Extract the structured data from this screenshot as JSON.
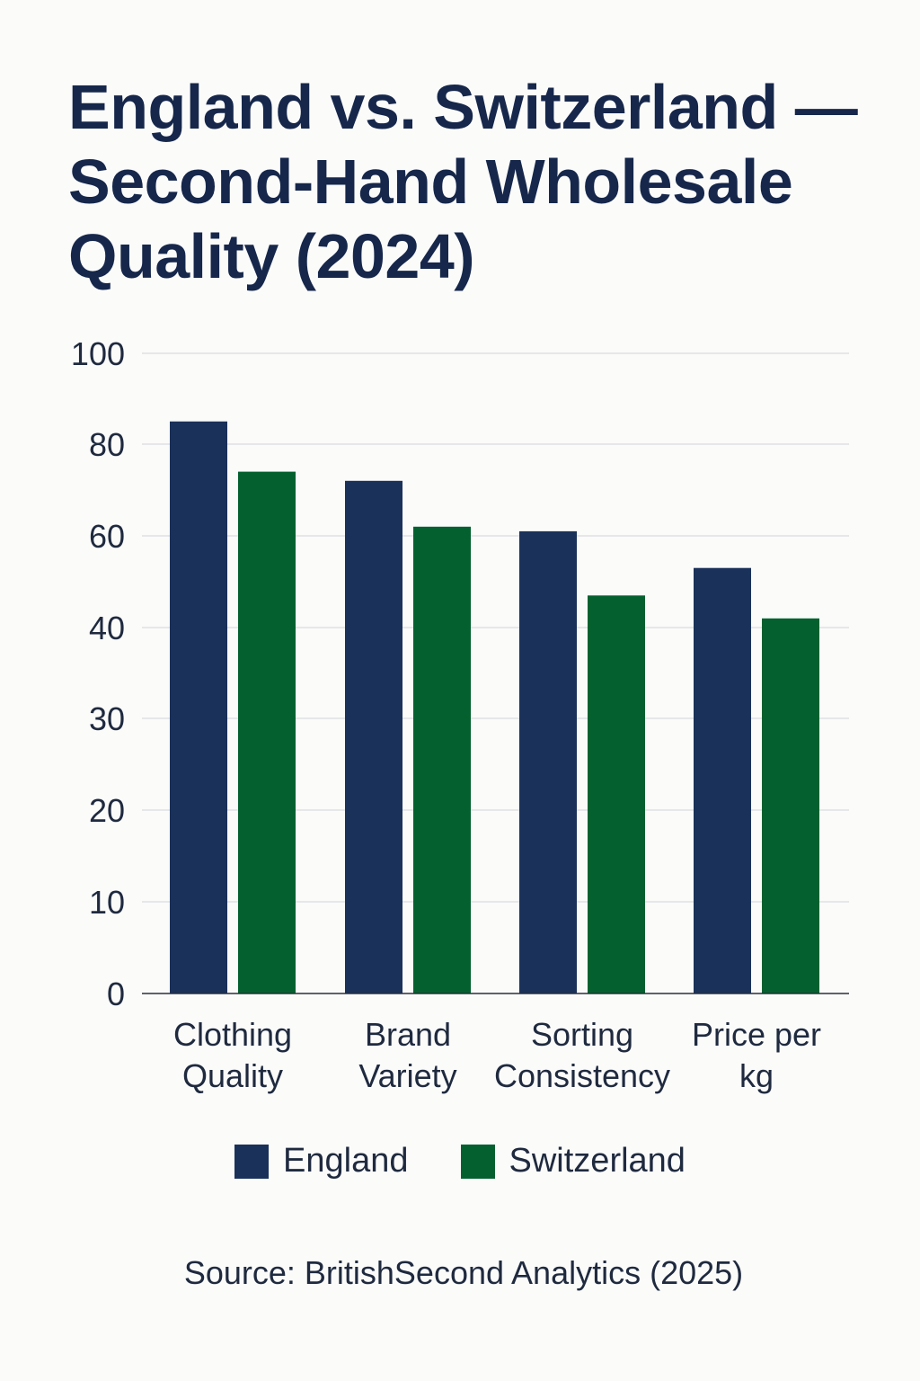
{
  "chart_data": {
    "type": "bar",
    "title": "England vs. Switzerland — Second-Hand Wholesale Quality (2024)",
    "categories": [
      [
        "Clothing",
        "Quality"
      ],
      [
        "Brand",
        "Variety"
      ],
      [
        "Sorting",
        "Consistency"
      ],
      [
        "Price per",
        "kg"
      ]
    ],
    "series": [
      {
        "name": "England",
        "color": "#1a3159",
        "values": [
          85,
          72,
          61,
          53
        ]
      },
      {
        "name": "Switzerland",
        "color": "#04612f",
        "values": [
          74,
          62,
          47,
          42
        ]
      }
    ],
    "y_ticks": [
      "0",
      "10",
      "20",
      "30",
      "40",
      "60",
      "80",
      "100"
    ],
    "grid": true,
    "legend_position": "bottom"
  },
  "source": "Source: BritishSecond Analytics (2025)"
}
